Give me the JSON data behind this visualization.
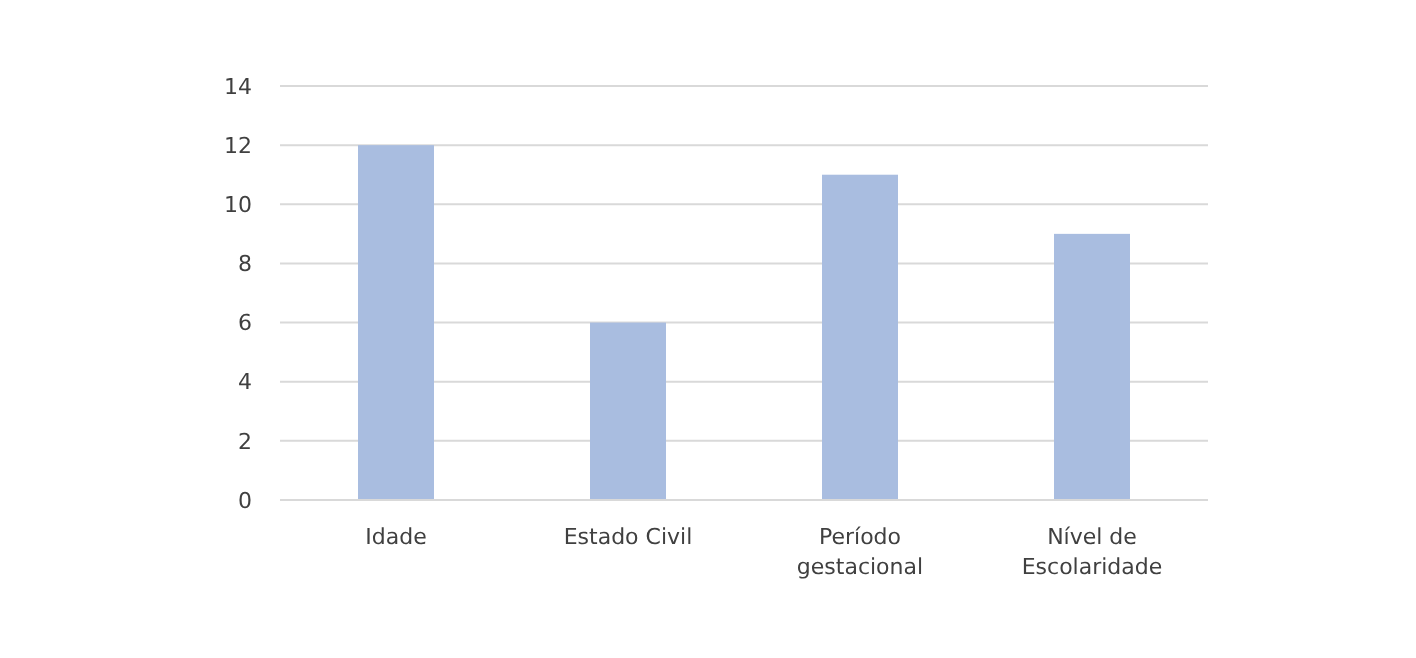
{
  "chart_data": {
    "type": "bar",
    "categories": [
      "Idade",
      "Estado Civil",
      "Período gestacional",
      "Nível de Escolaridade"
    ],
    "values": [
      12,
      6,
      11,
      9
    ],
    "color": "#a9bde0",
    "ylim": [
      0,
      14
    ],
    "yticks": [
      0,
      2,
      4,
      6,
      8,
      10,
      12,
      14
    ],
    "grid": "y"
  }
}
